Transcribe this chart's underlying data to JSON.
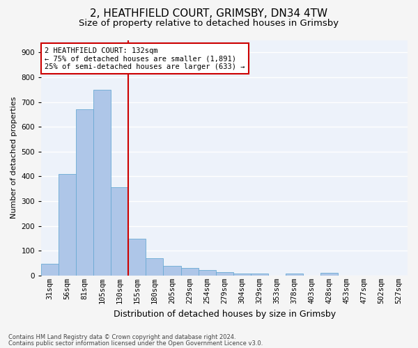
{
  "title1": "2, HEATHFIELD COURT, GRIMSBY, DN34 4TW",
  "title2": "Size of property relative to detached houses in Grimsby",
  "xlabel": "Distribution of detached houses by size in Grimsby",
  "ylabel": "Number of detached properties",
  "footnote1": "Contains HM Land Registry data © Crown copyright and database right 2024.",
  "footnote2": "Contains public sector information licensed under the Open Government Licence v3.0.",
  "bar_labels": [
    "31sqm",
    "56sqm",
    "81sqm",
    "105sqm",
    "130sqm",
    "155sqm",
    "180sqm",
    "205sqm",
    "229sqm",
    "254sqm",
    "279sqm",
    "304sqm",
    "329sqm",
    "353sqm",
    "378sqm",
    "403sqm",
    "428sqm",
    "453sqm",
    "477sqm",
    "502sqm",
    "527sqm"
  ],
  "bar_values": [
    47,
    410,
    670,
    750,
    355,
    148,
    70,
    38,
    30,
    22,
    14,
    9,
    7,
    0,
    8,
    0,
    10,
    0,
    0,
    0,
    0
  ],
  "bar_color": "#aec6e8",
  "bar_edge_color": "#6aaad4",
  "vline_x": 4,
  "vline_color": "#cc0000",
  "annotation_text": "2 HEATHFIELD COURT: 132sqm\n← 75% of detached houses are smaller (1,891)\n25% of semi-detached houses are larger (633) →",
  "annotation_box_color": "#ffffff",
  "annotation_box_edge": "#cc0000",
  "ylim": [
    0,
    950
  ],
  "yticks": [
    0,
    100,
    200,
    300,
    400,
    500,
    600,
    700,
    800,
    900
  ],
  "background_color": "#edf2fa",
  "grid_color": "#ffffff",
  "title1_fontsize": 11,
  "title2_fontsize": 9.5,
  "xlabel_fontsize": 9,
  "ylabel_fontsize": 8,
  "tick_fontsize": 7.5,
  "annotation_fontsize": 7.5
}
